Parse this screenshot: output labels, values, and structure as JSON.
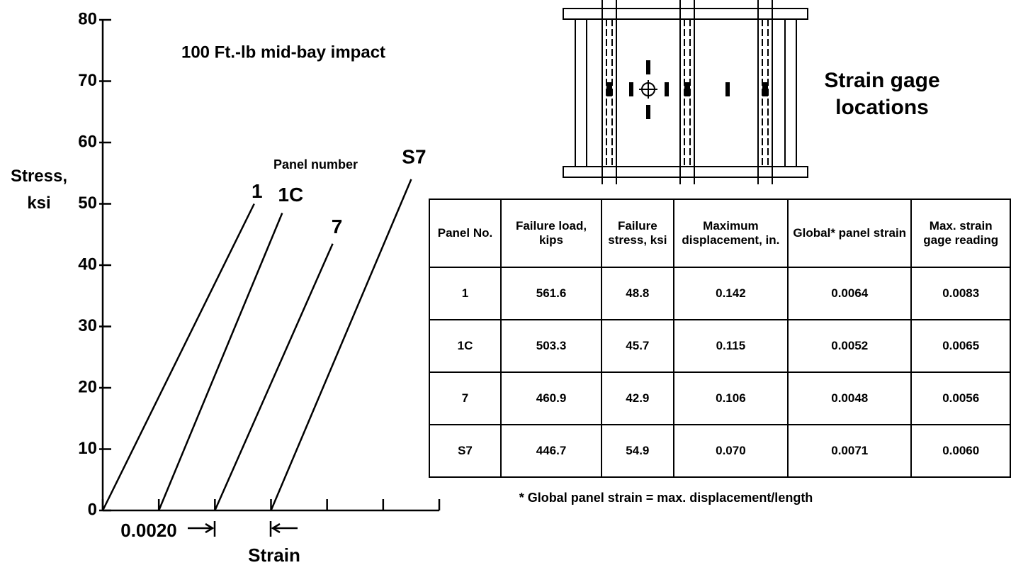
{
  "chart_data": {
    "type": "line",
    "title": "100 Ft.-lb mid-bay impact",
    "ylabel": "Stress, ksi",
    "xlabel": "Strain",
    "annotation": "Panel number",
    "spacing_label": "0.0020",
    "xlim": [
      0,
      0.012
    ],
    "xticks": [
      0,
      0.002,
      0.004,
      0.006,
      0.008,
      0.01,
      0.012
    ],
    "ylim": [
      0,
      80
    ],
    "yticks": [
      0,
      10,
      20,
      30,
      40,
      50,
      60,
      70,
      80
    ],
    "series": [
      {
        "name": "1",
        "color": "#000000",
        "x": [
          0,
          0.0054
        ],
        "values": [
          0,
          50
        ]
      },
      {
        "name": "1C",
        "color": "#000000",
        "x": [
          0.002,
          0.0064
        ],
        "values": [
          0,
          48.5
        ]
      },
      {
        "name": "7",
        "color": "#000000",
        "x": [
          0.004,
          0.0082
        ],
        "values": [
          0,
          43.5
        ]
      },
      {
        "name": "S7",
        "color": "#000000",
        "x": [
          0.006,
          0.011
        ],
        "values": [
          0,
          54
        ]
      }
    ]
  },
  "diagram": {
    "caption": "Strain gage locations"
  },
  "table": {
    "headers": [
      "Panel No.",
      "Failure load, kips",
      "Failure stress, ksi",
      "Maximum displacement, in.",
      "Global* panel strain",
      "Max. strain gage reading"
    ],
    "rows": [
      [
        "1",
        "561.6",
        "48.8",
        "0.142",
        "0.0064",
        "0.0083"
      ],
      [
        "1C",
        "503.3",
        "45.7",
        "0.115",
        "0.0052",
        "0.0065"
      ],
      [
        "7",
        "460.9",
        "42.9",
        "0.106",
        "0.0048",
        "0.0056"
      ],
      [
        "S7",
        "446.7",
        "54.9",
        "0.070",
        "0.0071",
        "0.0060"
      ]
    ]
  },
  "footnote": "* Global panel strain = max. displacement/length"
}
